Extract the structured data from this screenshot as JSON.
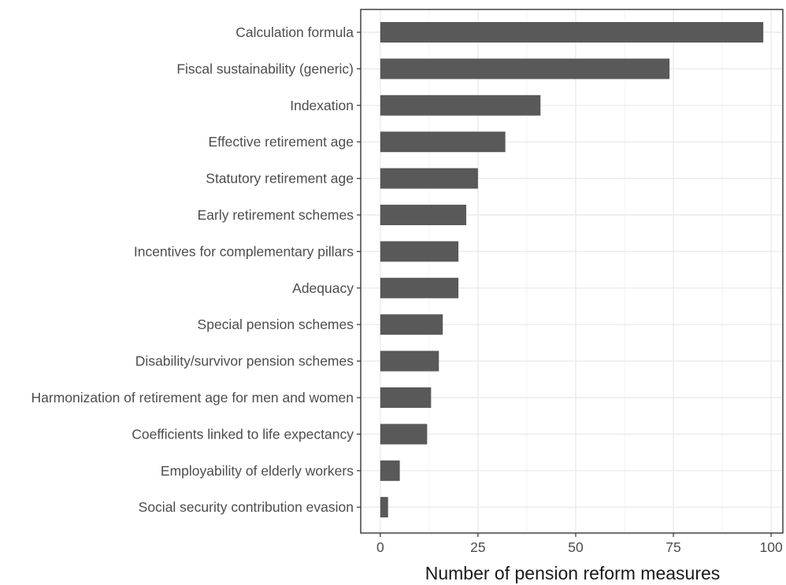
{
  "chart_data": {
    "type": "bar",
    "orientation": "horizontal",
    "categories": [
      "Calculation formula",
      "Fiscal sustainability (generic)",
      "Indexation",
      "Effective retirement age",
      "Statutory retirement age",
      "Early retirement schemes",
      "Incentives for complementary pillars",
      "Adequacy",
      "Special pension schemes",
      "Disability/survivor pension schemes",
      "Harmonization of retirement age for men and women",
      "Coefficients linked to life expectancy",
      "Employability of elderly workers",
      "Social security contribution evasion"
    ],
    "values": [
      98,
      74,
      41,
      32,
      25,
      22,
      20,
      20,
      16,
      15,
      13,
      12,
      5,
      2
    ],
    "xlabel": "Number of pension reform measures",
    "ylabel": "",
    "xlim": [
      -5,
      103
    ],
    "xticks": [
      0,
      25,
      50,
      75,
      100
    ],
    "xtick_labels": [
      "0",
      "25",
      "50",
      "75",
      "100"
    ],
    "grid": true,
    "bar_color": "#595959",
    "grid_color": "#ebebeb"
  }
}
